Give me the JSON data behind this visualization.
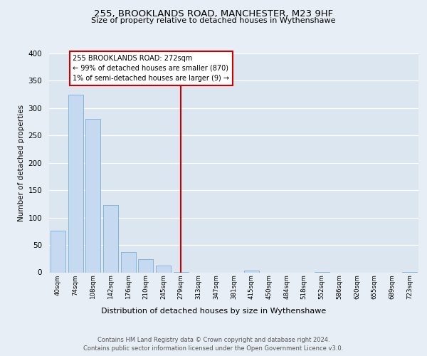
{
  "title1": "255, BROOKLANDS ROAD, MANCHESTER, M23 9HF",
  "title2": "Size of property relative to detached houses in Wythenshawe",
  "xlabel": "Distribution of detached houses by size in Wythenshawe",
  "ylabel": "Number of detached properties",
  "bin_labels": [
    "40sqm",
    "74sqm",
    "108sqm",
    "142sqm",
    "176sqm",
    "210sqm",
    "245sqm",
    "279sqm",
    "313sqm",
    "347sqm",
    "381sqm",
    "415sqm",
    "450sqm",
    "484sqm",
    "518sqm",
    "552sqm",
    "586sqm",
    "620sqm",
    "655sqm",
    "689sqm",
    "723sqm"
  ],
  "bar_values": [
    76,
    325,
    280,
    123,
    37,
    24,
    13,
    1,
    0,
    0,
    0,
    3,
    0,
    0,
    0,
    1,
    0,
    0,
    0,
    0,
    1
  ],
  "bar_color": "#c5d9f0",
  "bar_edge_color": "#7bafd4",
  "property_line_label": "255 BROOKLANDS ROAD: 272sqm",
  "annotation_line1": "← 99% of detached houses are smaller (870)",
  "annotation_line2": "1% of semi-detached houses are larger (9) →",
  "annotation_box_color": "#ffffff",
  "annotation_box_edge": "#cc0000",
  "vertical_line_color": "#cc0000",
  "ylim": [
    0,
    400
  ],
  "yticks": [
    0,
    50,
    100,
    150,
    200,
    250,
    300,
    350,
    400
  ],
  "footer1": "Contains HM Land Registry data © Crown copyright and database right 2024.",
  "footer2": "Contains public sector information licensed under the Open Government Licence v3.0.",
  "bg_color": "#e8eef5",
  "plot_bg_color": "#dce6f0"
}
